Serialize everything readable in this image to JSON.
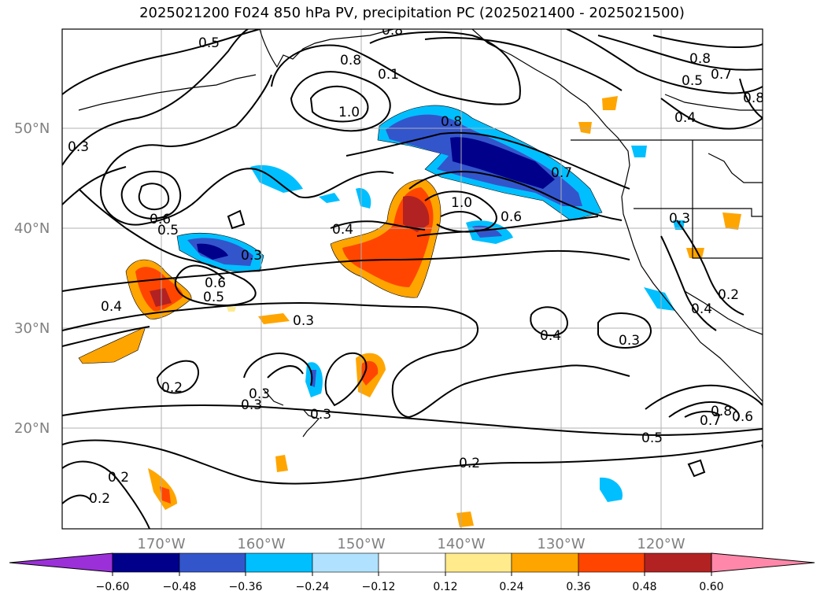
{
  "title": "2025021200 F024 850 hPa PV, precipitation PC (2025021400 - 2025021500)",
  "lat_labels": [
    "50°N",
    "40°N",
    "30°N",
    "20°N"
  ],
  "lon_labels": [
    "170°W",
    "160°W",
    "150°W",
    "140°W",
    "130°W",
    "120°W"
  ],
  "contour_labels": [
    "0.5",
    "0.8",
    "0.8",
    "0.8",
    "0.7",
    "0.5",
    "0.8",
    "0.4",
    "0.1",
    "1.0",
    "0.3",
    "0.8",
    "0.7",
    "0.6",
    "1.0",
    "0.6",
    "0.5",
    "0.4",
    "0.3",
    "0.3",
    "0.6",
    "0.5",
    "0.4",
    "0.3",
    "0.4",
    "0.3",
    "0.2",
    "0.4",
    "0.2",
    "0.3",
    "0.3",
    "0.3",
    "0.8",
    "0.7",
    "0.6",
    "0.5",
    "0.2",
    "0.2",
    "0.2"
  ],
  "colorbar": {
    "tick_labels": [
      "−0.60",
      "−0.48",
      "−0.36",
      "−0.24",
      "−0.12",
      "0.12",
      "0.24",
      "0.36",
      "0.48",
      "0.60"
    ],
    "colors": [
      "#9b30d9",
      "#00008b",
      "#3355cc",
      "#00bfff",
      "#b0e2ff",
      "#ffffff",
      "#ffeb8c",
      "#ffa500",
      "#ff4500",
      "#b22222",
      "#ff88aa"
    ]
  }
}
